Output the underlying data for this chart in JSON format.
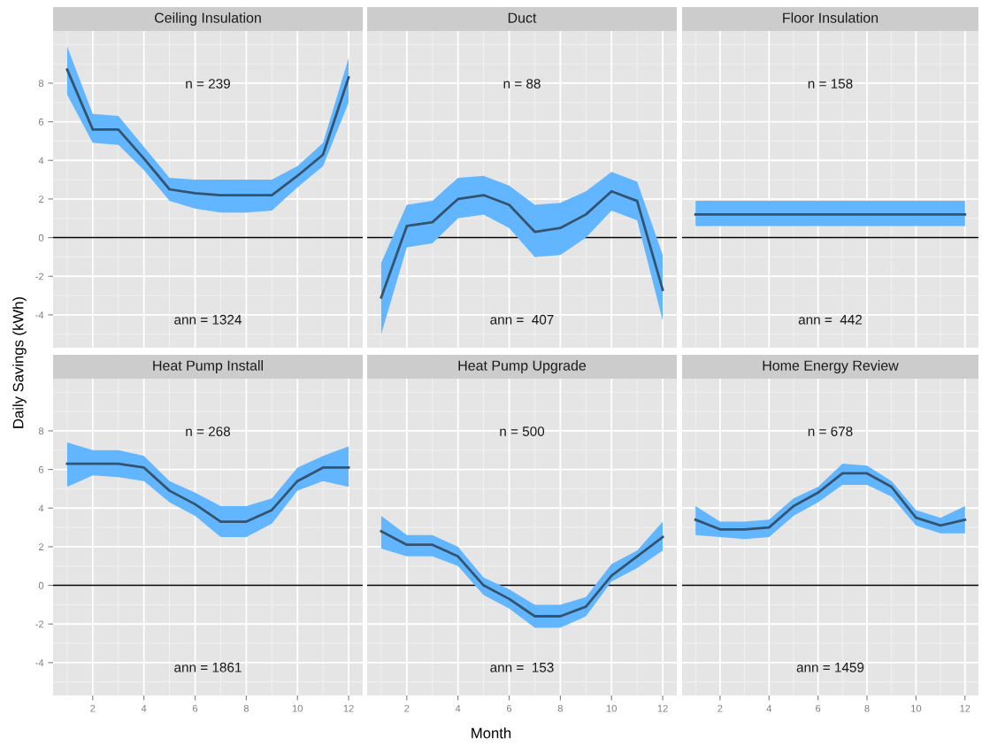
{
  "chart_data": [
    {
      "type": "line",
      "title": "Ceiling Insulation",
      "ylabel": "Daily Savings (kWh)",
      "x": [
        1,
        2,
        3,
        4,
        5,
        6,
        7,
        8,
        9,
        10,
        11,
        12
      ],
      "xlim": [
        0.45,
        12.55
      ],
      "xticks": [
        2,
        4,
        6,
        8,
        10,
        12
      ],
      "ylim": [
        -5.7,
        10.7
      ],
      "yticks": [
        -4,
        -2,
        0,
        2,
        4,
        6,
        8
      ],
      "tick_labels": "y",
      "grid": true,
      "series": [
        {
          "color": "#34536e",
          "values": [
            8.7,
            5.6,
            5.6,
            4.1,
            2.5,
            2.3,
            2.2,
            2.2,
            2.2,
            3.2,
            4.3,
            8.3
          ],
          "lower": [
            7.4,
            4.9,
            4.8,
            3.5,
            1.9,
            1.5,
            1.3,
            1.3,
            1.4,
            2.6,
            3.7,
            7.0
          ],
          "upper": [
            9.9,
            6.4,
            6.3,
            4.7,
            3.1,
            3.0,
            3.0,
            3.0,
            3.0,
            3.7,
            4.9,
            9.3
          ]
        }
      ],
      "ref_lines": [
        {
          "axis": "y",
          "value": 0,
          "color": "#000000"
        }
      ],
      "annotations": [
        "n = 239",
        "ann = 1324"
      ]
    },
    {
      "type": "line",
      "title": "Duct",
      "x": [
        1,
        2,
        3,
        4,
        5,
        6,
        7,
        8,
        9,
        10,
        11,
        12
      ],
      "xlim": [
        0.45,
        12.55
      ],
      "xticks": [
        2,
        4,
        6,
        8,
        10,
        12
      ],
      "ylim": [
        -5.7,
        10.7
      ],
      "yticks": [
        -4,
        -2,
        0,
        2,
        4,
        6,
        8
      ],
      "tick_labels": false,
      "grid": true,
      "series": [
        {
          "color": "#34536e",
          "values": [
            -3.1,
            0.6,
            0.8,
            2.0,
            2.2,
            1.7,
            0.3,
            0.5,
            1.2,
            2.4,
            1.9,
            -2.7
          ],
          "lower": [
            -5.0,
            -0.5,
            -0.3,
            1.0,
            1.2,
            0.5,
            -1.0,
            -0.9,
            0.0,
            1.4,
            0.9,
            -4.3
          ],
          "upper": [
            -1.3,
            1.7,
            1.9,
            3.1,
            3.2,
            2.7,
            1.7,
            1.8,
            2.4,
            3.4,
            2.9,
            -0.9
          ]
        }
      ],
      "ref_lines": [
        {
          "axis": "y",
          "value": 0,
          "color": "#000000"
        }
      ],
      "annotations": [
        "n = 88",
        "ann =  407"
      ]
    },
    {
      "type": "line",
      "title": "Floor Insulation",
      "x": [
        1,
        2,
        3,
        4,
        5,
        6,
        7,
        8,
        9,
        10,
        11,
        12
      ],
      "xlim": [
        0.45,
        12.55
      ],
      "xticks": [
        2,
        4,
        6,
        8,
        10,
        12
      ],
      "ylim": [
        -5.7,
        10.7
      ],
      "yticks": [
        -4,
        -2,
        0,
        2,
        4,
        6,
        8
      ],
      "tick_labels": false,
      "grid": true,
      "series": [
        {
          "color": "#34536e",
          "values": [
            1.2,
            1.2,
            1.2,
            1.2,
            1.2,
            1.2,
            1.2,
            1.2,
            1.2,
            1.2,
            1.2,
            1.2
          ],
          "lower": [
            0.6,
            0.6,
            0.6,
            0.6,
            0.6,
            0.6,
            0.6,
            0.6,
            0.6,
            0.6,
            0.6,
            0.6
          ],
          "upper": [
            1.9,
            1.9,
            1.9,
            1.9,
            1.9,
            1.9,
            1.9,
            1.9,
            1.9,
            1.9,
            1.9,
            1.9
          ]
        }
      ],
      "ref_lines": [
        {
          "axis": "y",
          "value": 0,
          "color": "#000000"
        }
      ],
      "annotations": [
        "n = 158",
        "ann =  442"
      ]
    },
    {
      "type": "line",
      "title": "Heat Pump Install",
      "x": [
        1,
        2,
        3,
        4,
        5,
        6,
        7,
        8,
        9,
        10,
        11,
        12
      ],
      "xlim": [
        0.45,
        12.55
      ],
      "xticks": [
        2,
        4,
        6,
        8,
        10,
        12
      ],
      "ylim": [
        -5.7,
        10.7
      ],
      "yticks": [
        -4,
        -2,
        0,
        2,
        4,
        6,
        8
      ],
      "grid": true,
      "series": [
        {
          "color": "#34536e",
          "values": [
            6.3,
            6.3,
            6.3,
            6.1,
            4.9,
            4.2,
            3.3,
            3.3,
            3.9,
            5.4,
            6.1,
            6.1
          ],
          "lower": [
            5.1,
            5.7,
            5.6,
            5.4,
            4.3,
            3.6,
            2.5,
            2.5,
            3.2,
            4.9,
            5.4,
            5.1
          ],
          "upper": [
            7.4,
            7.0,
            7.0,
            6.7,
            5.4,
            4.8,
            4.1,
            4.1,
            4.5,
            6.1,
            6.7,
            7.2
          ]
        }
      ],
      "ref_lines": [
        {
          "axis": "y",
          "value": 0,
          "color": "#000000"
        }
      ],
      "annotations": [
        "n = 268",
        "ann = 1861"
      ]
    },
    {
      "type": "line",
      "title": "Heat Pump Upgrade",
      "xlabel": "Month",
      "x": [
        1,
        2,
        3,
        4,
        5,
        6,
        7,
        8,
        9,
        10,
        11,
        12
      ],
      "xlim": [
        0.45,
        12.55
      ],
      "xticks": [
        2,
        4,
        6,
        8,
        10,
        12
      ],
      "ylim": [
        -5.7,
        10.7
      ],
      "yticks": [
        -4,
        -2,
        0,
        2,
        4,
        6,
        8
      ],
      "tick_labels": "x",
      "grid": true,
      "series": [
        {
          "color": "#34536e",
          "values": [
            2.8,
            2.1,
            2.1,
            1.5,
            0.0,
            -0.7,
            -1.6,
            -1.6,
            -1.1,
            0.5,
            1.5,
            2.5
          ],
          "lower": [
            1.9,
            1.5,
            1.5,
            1.0,
            -0.5,
            -1.2,
            -2.2,
            -2.2,
            -1.6,
            0.2,
            0.9,
            1.8
          ],
          "upper": [
            3.6,
            2.6,
            2.6,
            2.0,
            0.4,
            -0.2,
            -1.0,
            -1.0,
            -0.6,
            1.1,
            1.8,
            3.3
          ]
        }
      ],
      "ref_lines": [
        {
          "axis": "y",
          "value": 0,
          "color": "#000000"
        }
      ],
      "annotations": [
        "n = 500",
        "ann =  153"
      ]
    },
    {
      "type": "line",
      "title": "Home Energy Review",
      "x": [
        1,
        2,
        3,
        4,
        5,
        6,
        7,
        8,
        9,
        10,
        11,
        12
      ],
      "xlim": [
        0.45,
        12.55
      ],
      "xticks": [
        2,
        4,
        6,
        8,
        10,
        12
      ],
      "ylim": [
        -5.7,
        10.7
      ],
      "yticks": [
        -4,
        -2,
        0,
        2,
        4,
        6,
        8
      ],
      "tick_labels": "x",
      "grid": true,
      "series": [
        {
          "color": "#34536e",
          "values": [
            3.4,
            2.9,
            2.9,
            3.0,
            4.1,
            4.8,
            5.8,
            5.8,
            5.1,
            3.5,
            3.1,
            3.4
          ],
          "lower": [
            2.6,
            2.5,
            2.4,
            2.5,
            3.6,
            4.3,
            5.2,
            5.2,
            4.6,
            3.1,
            2.7,
            2.7
          ],
          "upper": [
            4.1,
            3.3,
            3.3,
            3.4,
            4.5,
            5.1,
            6.3,
            6.2,
            5.4,
            3.9,
            3.5,
            4.1
          ]
        }
      ],
      "ref_lines": [
        {
          "axis": "y",
          "value": 0,
          "color": "#000000"
        }
      ],
      "annotations": [
        "n = 678",
        "ann = 1459"
      ]
    }
  ]
}
